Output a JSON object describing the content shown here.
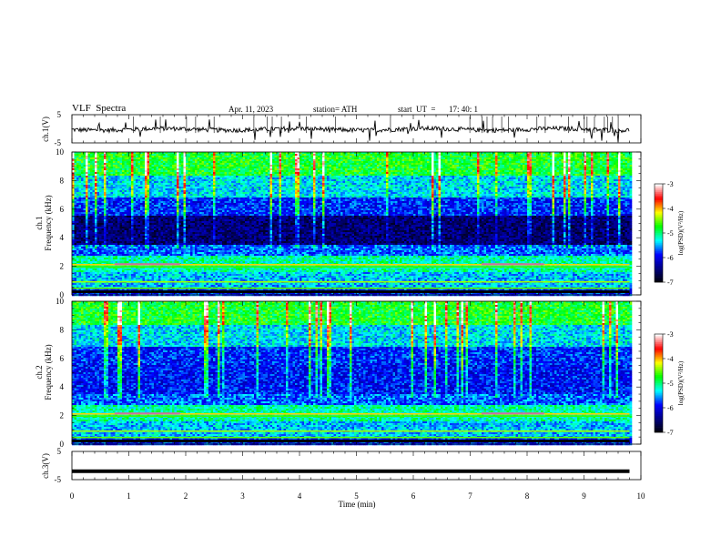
{
  "header": {
    "title": "VLF  Spectra",
    "date": "Apr. 11, 2023",
    "station": "station= ATH",
    "start_label": "start  UT  =",
    "start_time": "17: 40: 1"
  },
  "chart_data": [
    {
      "type": "line",
      "panel": "ch1-waveform",
      "ylabel": "ch.1(V)",
      "ylim": [
        -5,
        5
      ],
      "ytick_labels": [
        "5",
        "-5"
      ],
      "xlim": [
        0,
        10
      ],
      "data_extent_min": [
        0,
        9.8
      ],
      "note_values": "noisy trace around -0.2 V with spikes",
      "approx_level": -0.2
    },
    {
      "type": "heatmap",
      "panel": "ch1-spectrogram",
      "ylabel_line1": "ch.1",
      "ylabel_line2": "Frequency (kHz)",
      "ylim": [
        0,
        10
      ],
      "ytick_labels": [
        "0",
        "2",
        "4",
        "6",
        "8",
        "10"
      ],
      "xlim": [
        0,
        10
      ],
      "colorbar_label": "log(PSD)(V²/Hz)",
      "colorbar_range": [
        -7,
        -3
      ],
      "colorbar_ticks": [
        "-3",
        "-4",
        "-5",
        "-6",
        "-7"
      ]
    },
    {
      "type": "heatmap",
      "panel": "ch2-spectrogram",
      "ylabel_line1": "ch.2",
      "ylabel_line2": "Frequency (kHz)",
      "ylim": [
        0,
        10
      ],
      "ytick_labels": [
        "0",
        "2",
        "4",
        "6",
        "8",
        "10"
      ],
      "xlim": [
        0,
        10
      ],
      "colorbar_label": "log(PSD)(V²/Hz)",
      "colorbar_range": [
        -7,
        -3
      ],
      "colorbar_ticks": [
        "-3",
        "-4",
        "-5",
        "-6",
        "-7"
      ]
    },
    {
      "type": "line",
      "panel": "ch3-waveform",
      "ylabel": "ch.3(V)",
      "ylim": [
        -5,
        5
      ],
      "ytick_labels": [
        "5",
        "-5"
      ],
      "xlim": [
        0,
        10
      ],
      "xlabel": "Time  (min)",
      "xtick_labels": [
        "0",
        "1",
        "2",
        "3",
        "4",
        "5",
        "6",
        "7",
        "8",
        "9",
        "10"
      ],
      "approx_level": -2
    }
  ],
  "colors": {
    "axis": "#000000",
    "trace": "#000000",
    "colormap": [
      "#000000",
      "#00007f",
      "#0000ff",
      "#00ffff",
      "#00ff00",
      "#ffff00",
      "#ff0000",
      "#ffffff"
    ]
  }
}
